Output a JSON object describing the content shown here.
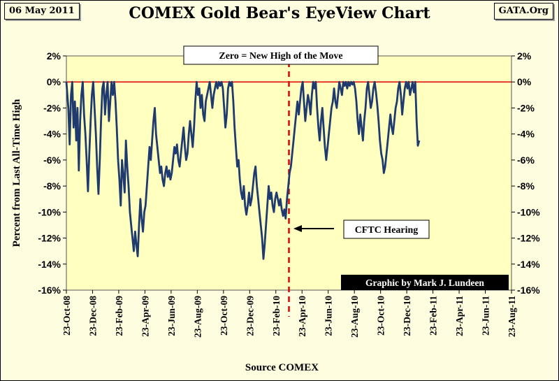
{
  "header": {
    "date": "06 May 2011",
    "title": "COMEX Gold Bear's EyeView Chart",
    "site": "GATA.Org"
  },
  "chart_data": {
    "type": "line",
    "title": "COMEX Gold Bear's EyeView Chart",
    "ylabel": "Percent from Last All-Time High",
    "xlabel": "Source COMEX",
    "ylim": [
      -16,
      2
    ],
    "yticks": [
      "2%",
      "0%",
      "-2%",
      "-4%",
      "-6%",
      "-8%",
      "-10%",
      "-12%",
      "-14%",
      "-16%"
    ],
    "x_tick_labels": [
      "23-Oct-08",
      "23-Dec-08",
      "23-Feb-09",
      "23-Apr-09",
      "23-Jun-09",
      "23-Aug-09",
      "23-Oct-09",
      "23-Dec-09",
      "23-Feb-10",
      "23-Apr-10",
      "23-Jun-10",
      "23-Aug-10",
      "23-Oct-10",
      "23-Dec-10",
      "23-Feb-11",
      "23-Apr-11",
      "23-Jun-11",
      "23-Aug-11"
    ],
    "x_unit": "months since 23-Oct-08",
    "xlim": [
      0,
      34
    ],
    "grid": false,
    "reference_line": {
      "y": 0,
      "label": "Zero = New High of the Move"
    },
    "event_line": {
      "x": 17,
      "label": "CFTC Hearing"
    },
    "credit": "Graphic by Mark J. Lundeen",
    "series": [
      {
        "name": "Percent from last all-time high",
        "color": "#1f3a6e",
        "points": [
          [
            0.0,
            0.0
          ],
          [
            0.15,
            -2.0
          ],
          [
            0.25,
            -4.8
          ],
          [
            0.35,
            -1.0
          ],
          [
            0.45,
            0.0
          ],
          [
            0.55,
            -3.5
          ],
          [
            0.65,
            -1.5
          ],
          [
            0.75,
            -4.5
          ],
          [
            0.85,
            -2.0
          ],
          [
            0.95,
            -6.8
          ],
          [
            1.05,
            -3.0
          ],
          [
            1.15,
            -1.0
          ],
          [
            1.25,
            0.0
          ],
          [
            1.35,
            -2.5
          ],
          [
            1.45,
            -4.0
          ],
          [
            1.55,
            -6.0
          ],
          [
            1.65,
            -8.4
          ],
          [
            1.75,
            -5.5
          ],
          [
            1.85,
            -3.0
          ],
          [
            1.95,
            -1.0
          ],
          [
            2.05,
            0.0
          ],
          [
            2.15,
            -2.0
          ],
          [
            2.25,
            -4.0
          ],
          [
            2.35,
            -6.5
          ],
          [
            2.45,
            -8.6
          ],
          [
            2.55,
            -6.0
          ],
          [
            2.65,
            -3.0
          ],
          [
            2.75,
            -0.5
          ],
          [
            2.85,
            0.0
          ],
          [
            2.95,
            -2.5
          ],
          [
            3.05,
            -1.0
          ],
          [
            3.15,
            0.0
          ],
          [
            3.25,
            -3.0
          ],
          [
            3.35,
            -1.5
          ],
          [
            3.45,
            0.0
          ],
          [
            3.55,
            -1.0
          ],
          [
            3.65,
            0.0
          ],
          [
            3.75,
            -1.5
          ],
          [
            3.85,
            -3.5
          ],
          [
            3.95,
            -6.0
          ],
          [
            4.05,
            -7.5
          ],
          [
            4.15,
            -9.5
          ],
          [
            4.25,
            -6.0
          ],
          [
            4.35,
            -7.2
          ],
          [
            4.45,
            -8.5
          ],
          [
            4.55,
            -4.5
          ],
          [
            4.65,
            -6.5
          ],
          [
            4.75,
            -8.0
          ],
          [
            4.85,
            -10.0
          ],
          [
            4.95,
            -11.0
          ],
          [
            5.05,
            -12.0
          ],
          [
            5.15,
            -13.0
          ],
          [
            5.25,
            -11.5
          ],
          [
            5.35,
            -12.5
          ],
          [
            5.45,
            -13.4
          ],
          [
            5.55,
            -11.0
          ],
          [
            5.65,
            -9.0
          ],
          [
            5.75,
            -10.5
          ],
          [
            5.85,
            -11.5
          ],
          [
            5.95,
            -10.0
          ],
          [
            6.05,
            -9.5
          ],
          [
            6.15,
            -8.0
          ],
          [
            6.25,
            -6.5
          ],
          [
            6.35,
            -5.0
          ],
          [
            6.45,
            -6.0
          ],
          [
            6.55,
            -4.5
          ],
          [
            6.65,
            -3.0
          ],
          [
            6.75,
            -2.0
          ],
          [
            6.85,
            -4.0
          ],
          [
            6.95,
            -5.0
          ],
          [
            7.05,
            -6.0
          ],
          [
            7.15,
            -7.0
          ],
          [
            7.25,
            -6.5
          ],
          [
            7.35,
            -7.5
          ],
          [
            7.45,
            -8.0
          ],
          [
            7.55,
            -7.0
          ],
          [
            7.65,
            -6.5
          ],
          [
            7.75,
            -7.3
          ],
          [
            7.85,
            -6.8
          ],
          [
            7.95,
            -7.5
          ],
          [
            8.05,
            -7.0
          ],
          [
            8.15,
            -6.0
          ],
          [
            8.25,
            -5.0
          ],
          [
            8.35,
            -5.5
          ],
          [
            8.45,
            -4.8
          ],
          [
            8.55,
            -6.0
          ],
          [
            8.65,
            -6.5
          ],
          [
            8.75,
            -5.5
          ],
          [
            8.85,
            -4.5
          ],
          [
            8.95,
            -3.5
          ],
          [
            9.05,
            -5.0
          ],
          [
            9.15,
            -6.0
          ],
          [
            9.25,
            -5.5
          ],
          [
            9.35,
            -4.0
          ],
          [
            9.45,
            -3.0
          ],
          [
            9.55,
            -4.0
          ],
          [
            9.65,
            -5.0
          ],
          [
            9.75,
            -3.5
          ],
          [
            9.85,
            -1.5
          ],
          [
            9.95,
            0.0
          ],
          [
            10.05,
            -1.0
          ],
          [
            10.15,
            -0.5
          ],
          [
            10.25,
            -2.0
          ],
          [
            10.35,
            -1.0
          ],
          [
            10.45,
            -2.5
          ],
          [
            10.55,
            -3.0
          ],
          [
            10.65,
            -1.5
          ],
          [
            10.75,
            -1.0
          ],
          [
            10.85,
            -0.5
          ],
          [
            10.95,
            0.0
          ],
          [
            11.05,
            -1.0
          ],
          [
            11.15,
            -2.0
          ],
          [
            11.25,
            -1.0
          ],
          [
            11.35,
            -0.5
          ],
          [
            11.45,
            0.0
          ],
          [
            11.55,
            -0.5
          ],
          [
            11.65,
            0.0
          ],
          [
            11.75,
            -0.3
          ],
          [
            11.85,
            0.0
          ],
          [
            11.95,
            -0.5
          ],
          [
            12.05,
            -2.0
          ],
          [
            12.15,
            -3.5
          ],
          [
            12.25,
            -2.5
          ],
          [
            12.35,
            -0.5
          ],
          [
            12.45,
            0.0
          ],
          [
            12.55,
            -0.3
          ],
          [
            12.65,
            0.0
          ],
          [
            12.75,
            -1.5
          ],
          [
            12.85,
            -3.5
          ],
          [
            12.95,
            -5.0
          ],
          [
            13.05,
            -6.5
          ],
          [
            13.15,
            -6.0
          ],
          [
            13.25,
            -7.5
          ],
          [
            13.35,
            -8.5
          ],
          [
            13.45,
            -9.0
          ],
          [
            13.55,
            -8.0
          ],
          [
            13.65,
            -9.5
          ],
          [
            13.75,
            -10.2
          ],
          [
            13.85,
            -9.5
          ],
          [
            13.95,
            -8.5
          ],
          [
            14.05,
            -9.5
          ],
          [
            14.15,
            -9.0
          ],
          [
            14.25,
            -8.0
          ],
          [
            14.35,
            -7.0
          ],
          [
            14.45,
            -6.5
          ],
          [
            14.55,
            -8.0
          ],
          [
            14.65,
            -9.0
          ],
          [
            14.75,
            -10.0
          ],
          [
            14.85,
            -11.0
          ],
          [
            14.95,
            -12.0
          ],
          [
            15.05,
            -13.6
          ],
          [
            15.15,
            -12.5
          ],
          [
            15.25,
            -11.0
          ],
          [
            15.35,
            -9.5
          ],
          [
            15.45,
            -8.0
          ],
          [
            15.55,
            -9.0
          ],
          [
            15.65,
            -8.5
          ],
          [
            15.75,
            -9.5
          ],
          [
            15.85,
            -10.0
          ],
          [
            15.95,
            -9.0
          ],
          [
            16.05,
            -8.5
          ],
          [
            16.15,
            -9.0
          ],
          [
            16.25,
            -9.5
          ],
          [
            16.35,
            -9.0
          ],
          [
            16.45,
            -9.8
          ],
          [
            16.55,
            -10.3
          ],
          [
            16.65,
            -9.8
          ],
          [
            16.75,
            -10.5
          ],
          [
            16.85,
            -9.0
          ],
          [
            16.95,
            -8.0
          ],
          [
            17.05,
            -7.0
          ],
          [
            17.15,
            -6.5
          ],
          [
            17.25,
            -5.5
          ],
          [
            17.35,
            -4.5
          ],
          [
            17.45,
            -3.5
          ],
          [
            17.55,
            -2.5
          ],
          [
            17.65,
            -1.5
          ],
          [
            17.75,
            -2.5
          ],
          [
            17.85,
            -1.5
          ],
          [
            17.95,
            -0.5
          ],
          [
            18.05,
            0.0
          ],
          [
            18.15,
            -1.5
          ],
          [
            18.25,
            -3.0
          ],
          [
            18.35,
            -2.0
          ],
          [
            18.45,
            -1.0
          ],
          [
            18.55,
            -1.5
          ],
          [
            18.65,
            -2.5
          ],
          [
            18.75,
            -1.0
          ],
          [
            18.85,
            0.0
          ],
          [
            18.95,
            -0.5
          ],
          [
            19.05,
            0.0
          ],
          [
            19.15,
            -2.0
          ],
          [
            19.25,
            -3.5
          ],
          [
            19.35,
            -4.5
          ],
          [
            19.45,
            -3.0
          ],
          [
            19.55,
            -2.0
          ],
          [
            19.65,
            -3.5
          ],
          [
            19.75,
            -5.0
          ],
          [
            19.85,
            -6.0
          ],
          [
            19.95,
            -5.0
          ],
          [
            20.05,
            -4.0
          ],
          [
            20.15,
            -3.0
          ],
          [
            20.25,
            -2.0
          ],
          [
            20.35,
            -1.5
          ],
          [
            20.45,
            -0.5
          ],
          [
            20.55,
            -1.5
          ],
          [
            20.65,
            -2.0
          ],
          [
            20.75,
            -1.0
          ],
          [
            20.85,
            0.0
          ],
          [
            20.95,
            -0.5
          ],
          [
            21.05,
            -1.0
          ],
          [
            21.15,
            0.0
          ],
          [
            21.25,
            -0.3
          ],
          [
            21.35,
            0.0
          ],
          [
            21.45,
            -0.5
          ],
          [
            21.55,
            0.0
          ],
          [
            21.65,
            -0.3
          ],
          [
            21.75,
            0.0
          ],
          [
            21.85,
            -0.2
          ],
          [
            21.95,
            0.0
          ],
          [
            22.05,
            -0.5
          ],
          [
            22.15,
            -1.5
          ],
          [
            22.25,
            -3.0
          ],
          [
            22.35,
            -4.0
          ],
          [
            22.45,
            -2.5
          ],
          [
            22.55,
            -3.5
          ],
          [
            22.65,
            -4.5
          ],
          [
            22.75,
            -3.0
          ],
          [
            22.85,
            -2.0
          ],
          [
            22.95,
            -0.5
          ],
          [
            23.05,
            0.0
          ],
          [
            23.15,
            -1.0
          ],
          [
            23.25,
            -2.0
          ],
          [
            23.35,
            -1.5
          ],
          [
            23.45,
            -0.5
          ],
          [
            23.55,
            0.0
          ],
          [
            23.65,
            -0.8
          ],
          [
            23.75,
            -1.8
          ],
          [
            23.85,
            -3.0
          ],
          [
            23.95,
            -4.5
          ],
          [
            24.05,
            -5.5
          ],
          [
            24.15,
            -6.0
          ],
          [
            24.25,
            -7.0
          ],
          [
            24.35,
            -6.5
          ],
          [
            24.45,
            -5.5
          ],
          [
            24.55,
            -4.5
          ],
          [
            24.65,
            -3.5
          ],
          [
            24.75,
            -2.5
          ],
          [
            24.85,
            -3.5
          ],
          [
            24.95,
            -4.0
          ],
          [
            25.05,
            -3.0
          ],
          [
            25.15,
            -2.0
          ],
          [
            25.25,
            -1.5
          ],
          [
            25.35,
            -0.5
          ],
          [
            25.45,
            0.0
          ],
          [
            25.55,
            -1.0
          ],
          [
            25.65,
            -2.5
          ],
          [
            25.75,
            -1.5
          ],
          [
            25.85,
            -0.5
          ],
          [
            25.95,
            0.0
          ],
          [
            26.05,
            -0.5
          ],
          [
            26.15,
            0.0
          ],
          [
            26.25,
            -1.0
          ],
          [
            26.35,
            -0.5
          ],
          [
            26.45,
            0.0
          ],
          [
            26.55,
            -0.8
          ],
          [
            26.65,
            0.0
          ],
          [
            26.75,
            -3.0
          ],
          [
            26.85,
            -4.9
          ],
          [
            26.95,
            -4.5
          ]
        ]
      }
    ]
  }
}
